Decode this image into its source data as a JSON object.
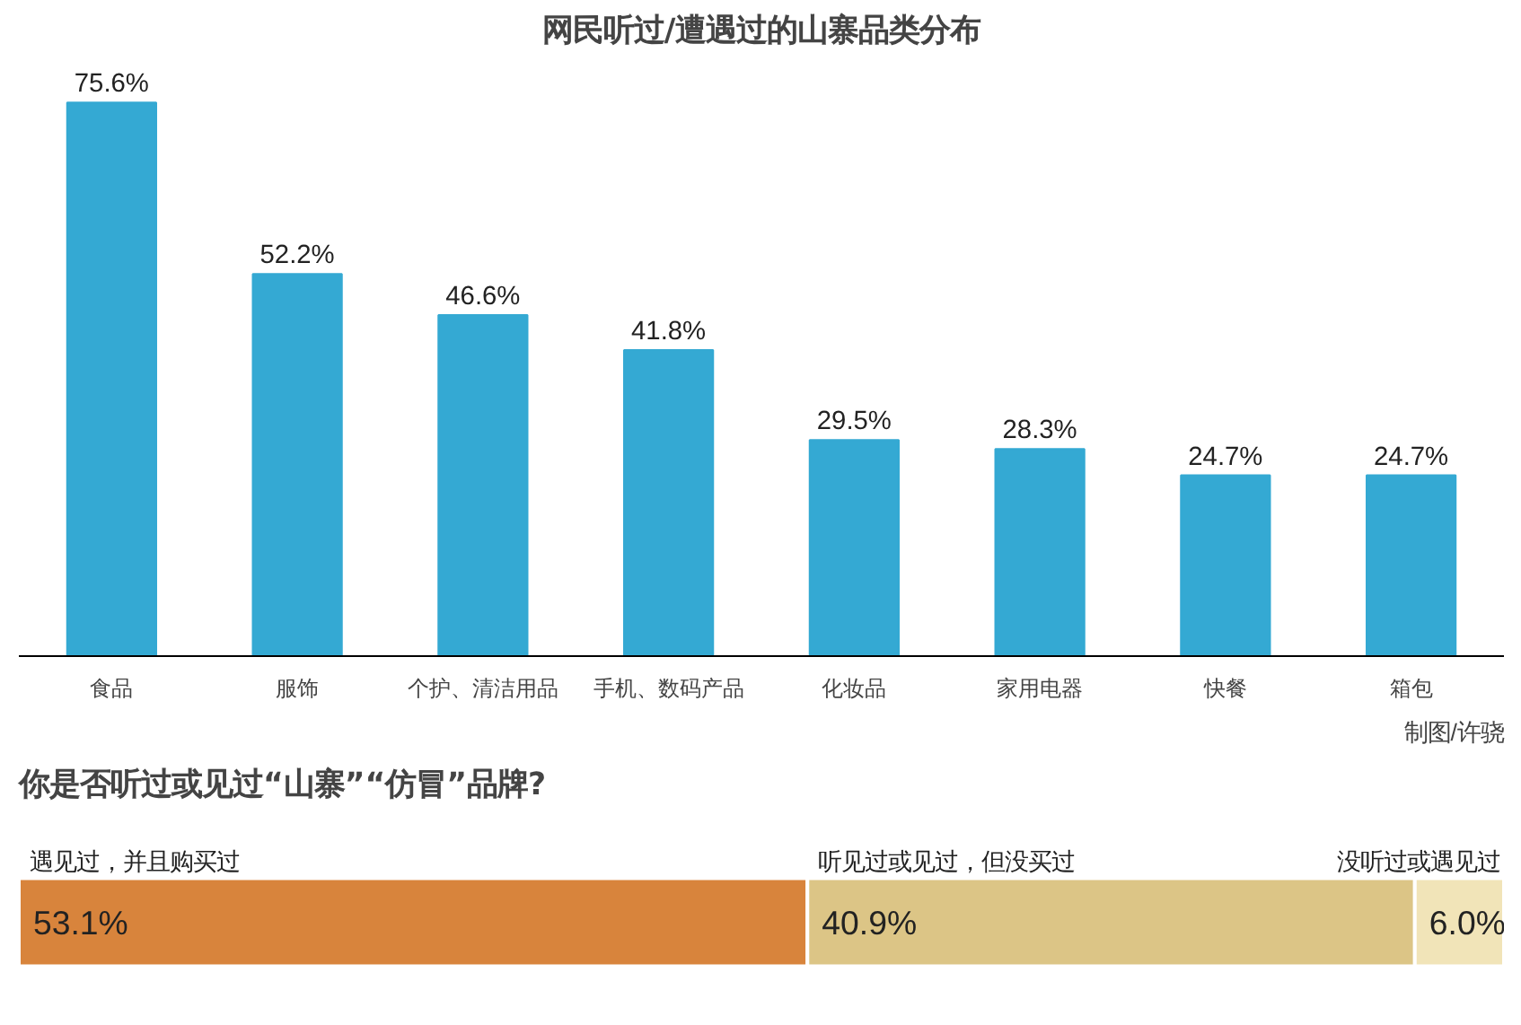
{
  "chart_data": [
    {
      "type": "bar",
      "title": "网民听过/遭遇过的山寨品类分布",
      "categories": [
        "食品",
        "服饰",
        "个护、清洁用品",
        "手机、数码产品",
        "化妆品",
        "家用电器",
        "快餐",
        "箱包"
      ],
      "values": [
        75.6,
        52.2,
        46.6,
        41.8,
        29.5,
        28.3,
        24.7,
        24.7
      ],
      "color": "#34a9d3",
      "value_labels": [
        "75.6%",
        "52.2%",
        "46.6%",
        "41.8%",
        "29.5%",
        "28.3%",
        "24.7%",
        "24.7%"
      ],
      "annotations": [
        "制图/许骁"
      ]
    },
    {
      "type": "bar",
      "orientation": "horizontal",
      "stacked": true,
      "title": "你是否听过或见过“山寨”“仿冒”品牌?",
      "categories": [
        null
      ],
      "series": [
        {
          "name": "遇见过，并且购买过",
          "color": "#d8843c",
          "values": [
            53.1
          ],
          "value_labels": [
            "53.1%"
          ]
        },
        {
          "name": "听见过或见过，但没买过",
          "color": "#dcc586",
          "values": [
            40.9
          ],
          "value_labels": [
            "40.9%"
          ]
        },
        {
          "name": "没听过或遇见过",
          "color": "#f1e4b8",
          "values": [
            6.0
          ],
          "value_labels": [
            "6.0%"
          ]
        }
      ]
    }
  ]
}
